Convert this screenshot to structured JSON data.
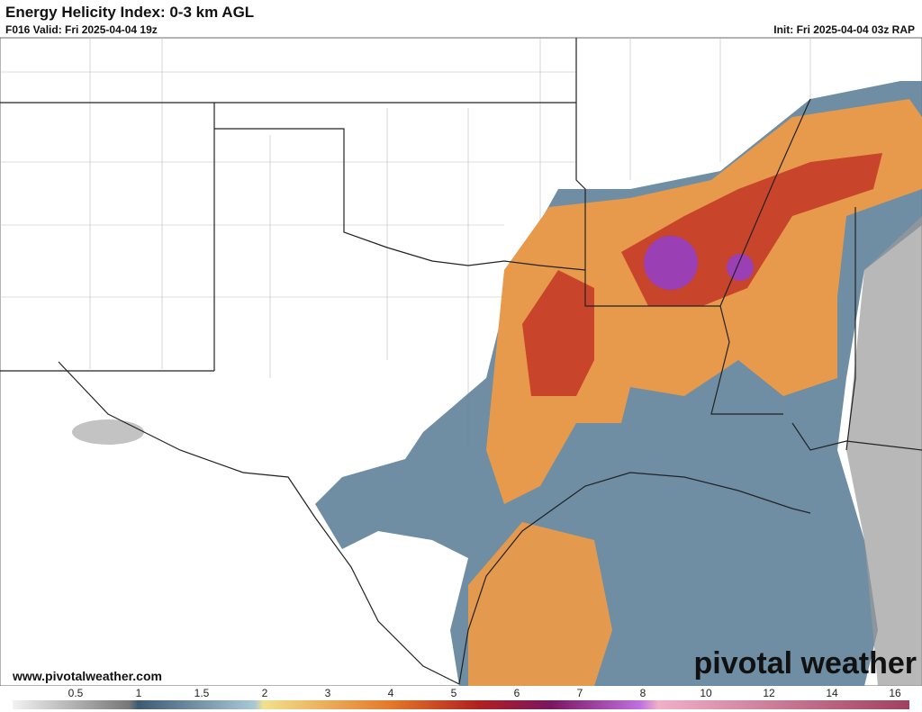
{
  "header": {
    "title": "Energy Helicity Index: 0-3 km AGL",
    "valid": "F016 Valid: Fri 2025-04-04 19z",
    "init": "Init: Fri 2025-04-04 03z RAP"
  },
  "footer": {
    "url": "www.pivotalweather.com",
    "brand": "pivotal weather"
  },
  "colorbar": {
    "ticks": [
      0.5,
      1,
      1.5,
      2,
      3,
      4,
      5,
      6,
      7,
      8,
      10,
      12,
      14,
      16
    ]
  }
}
